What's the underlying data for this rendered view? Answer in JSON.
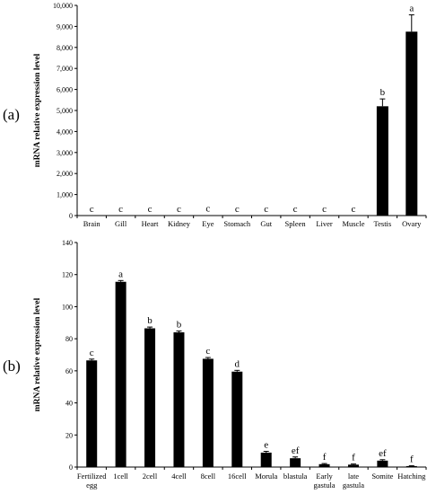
{
  "chart_data": [
    {
      "type": "bar",
      "panel_label": "(a)",
      "ylabel": "mRNA relative expression level",
      "xlabel": "",
      "ylim": [
        0,
        10000
      ],
      "yticks": [
        "0",
        "1,000",
        "2,000",
        "3,000",
        "4,000",
        "5,000",
        "6,000",
        "7,000",
        "8,000",
        "9,000",
        "10,000"
      ],
      "categories": [
        "Brain",
        "Gill",
        "Heart",
        "Kidney",
        "Eye",
        "Stomach",
        "Gut",
        "Spleen",
        "Liver",
        "Muscle",
        "Testis",
        "Ovary"
      ],
      "values": [
        2,
        2,
        2,
        2,
        20,
        2,
        2,
        2,
        2,
        2,
        5200,
        8750
      ],
      "errors": [
        0,
        0,
        0,
        0,
        0,
        0,
        0,
        0,
        0,
        0,
        350,
        800
      ],
      "significance": [
        "c",
        "c",
        "c",
        "c",
        "c",
        "c",
        "c",
        "c",
        "c",
        "c",
        "b",
        "a"
      ],
      "grid": false
    },
    {
      "type": "bar",
      "panel_label": "(b)",
      "ylabel": "mRNA relative expression level",
      "xlabel": "",
      "ylim": [
        0,
        140
      ],
      "yticks": [
        "0",
        "20",
        "40",
        "60",
        "80",
        "100",
        "120",
        "140"
      ],
      "categories": [
        [
          "Fertilized",
          "egg"
        ],
        [
          "1cell"
        ],
        [
          "2cell"
        ],
        [
          "4cell"
        ],
        [
          "8cell"
        ],
        [
          "16cell"
        ],
        [
          "Morula"
        ],
        [
          "blastula"
        ],
        [
          "Early",
          "gastula"
        ],
        [
          "late",
          "gastula"
        ],
        [
          "Somite"
        ],
        [
          "Hatching"
        ]
      ],
      "values": [
        66.5,
        115.5,
        86.5,
        84,
        67.5,
        59.5,
        9,
        5.5,
        1.8,
        1.5,
        4,
        0.6
      ],
      "errors": [
        0.8,
        0.8,
        0.8,
        0.8,
        0.8,
        0.8,
        0.8,
        0.8,
        0.4,
        0.4,
        0.6,
        0.2
      ],
      "significance": [
        "c",
        "a",
        "b",
        "b",
        "c",
        "d",
        "e",
        "ef",
        "f",
        "f",
        "ef",
        "f"
      ],
      "grid": false
    }
  ]
}
